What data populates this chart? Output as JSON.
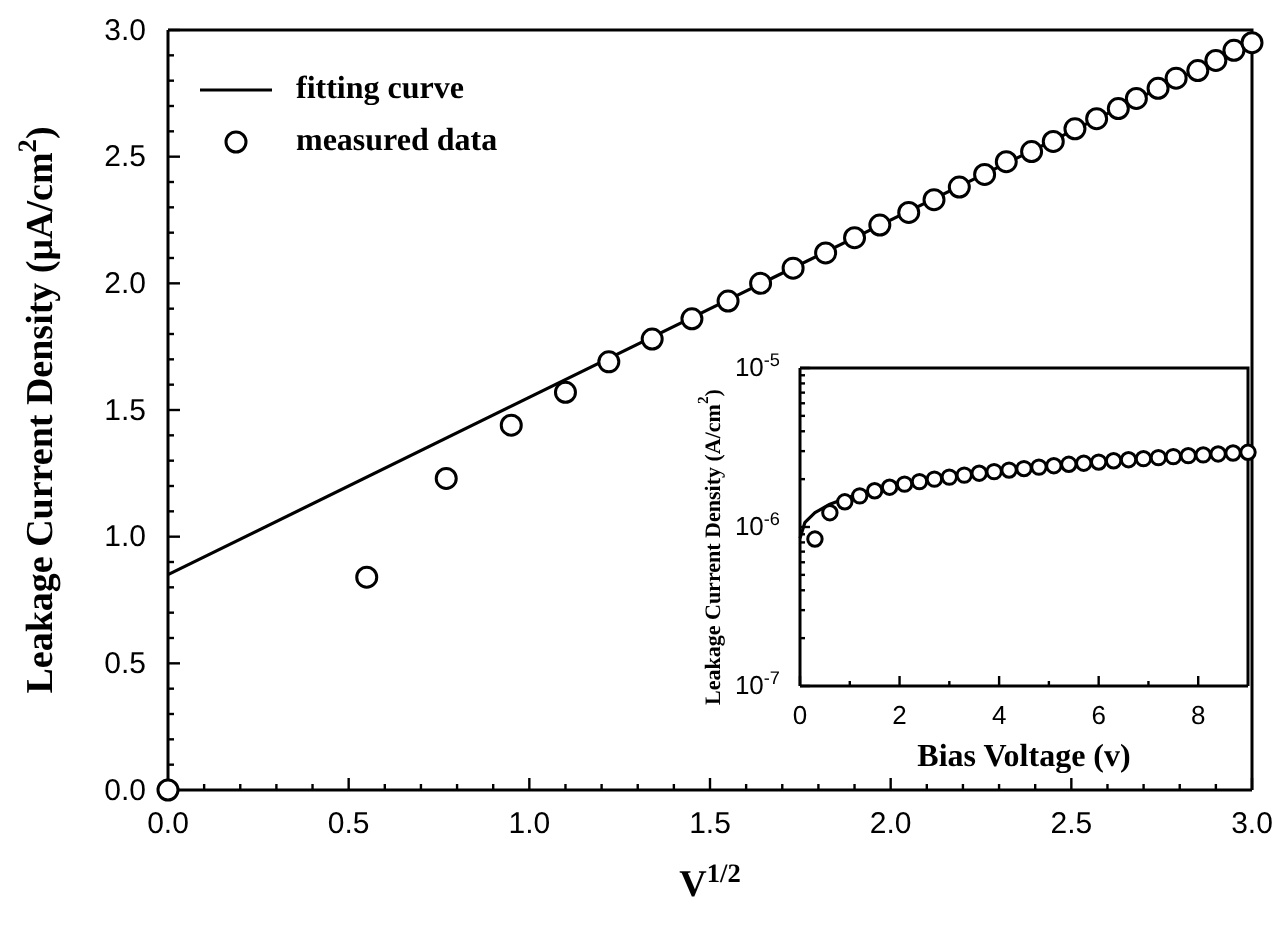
{
  "chart_data": [
    {
      "type": "scatter",
      "xlabel": "V$^{1/2}$",
      "ylabel": "Leakage Current Density (μA/cm$^{2}$)",
      "xlim": [
        0,
        3
      ],
      "ylim": [
        0,
        3
      ],
      "xticks": [
        {
          "value": 0,
          "label": "0.0"
        },
        {
          "value": 0.1,
          "label": null
        },
        {
          "value": 0.2,
          "label": null
        },
        {
          "value": 0.3,
          "label": null
        },
        {
          "value": 0.4,
          "label": null
        },
        {
          "value": 0.5,
          "label": "0.5"
        },
        {
          "value": 0.6,
          "label": null
        },
        {
          "value": 0.7,
          "label": null
        },
        {
          "value": 0.8,
          "label": null
        },
        {
          "value": 0.9,
          "label": null
        },
        {
          "value": 1,
          "label": "1.0"
        },
        {
          "value": 1.1,
          "label": null
        },
        {
          "value": 1.2,
          "label": null
        },
        {
          "value": 1.3,
          "label": null
        },
        {
          "value": 1.4,
          "label": null
        },
        {
          "value": 1.5,
          "label": "1.5"
        },
        {
          "value": 1.6,
          "label": null
        },
        {
          "value": 1.7,
          "label": null
        },
        {
          "value": 1.8,
          "label": null
        },
        {
          "value": 1.9,
          "label": null
        },
        {
          "value": 2,
          "label": "2.0"
        },
        {
          "value": 2.1,
          "label": null
        },
        {
          "value": 2.2,
          "label": null
        },
        {
          "value": 2.3,
          "label": null
        },
        {
          "value": 2.4,
          "label": null
        },
        {
          "value": 2.5,
          "label": "2.5"
        },
        {
          "value": 2.6,
          "label": null
        },
        {
          "value": 2.7,
          "label": null
        },
        {
          "value": 2.8,
          "label": null
        },
        {
          "value": 2.9,
          "label": null
        },
        {
          "value": 3,
          "label": "3.0"
        }
      ],
      "yticks": [
        {
          "value": 0,
          "label": "0.0"
        },
        {
          "value": 0.1,
          "label": null
        },
        {
          "value": 0.2,
          "label": null
        },
        {
          "value": 0.3,
          "label": null
        },
        {
          "value": 0.4,
          "label": null
        },
        {
          "value": 0.5,
          "label": "0.5"
        },
        {
          "value": 0.6,
          "label": null
        },
        {
          "value": 0.7,
          "label": null
        },
        {
          "value": 0.8,
          "label": null
        },
        {
          "value": 0.9,
          "label": null
        },
        {
          "value": 1,
          "label": "1.0"
        },
        {
          "value": 1.1,
          "label": null
        },
        {
          "value": 1.2,
          "label": null
        },
        {
          "value": 1.3,
          "label": null
        },
        {
          "value": 1.4,
          "label": null
        },
        {
          "value": 1.5,
          "label": "1.5"
        },
        {
          "value": 1.6,
          "label": null
        },
        {
          "value": 1.7,
          "label": null
        },
        {
          "value": 1.8,
          "label": null
        },
        {
          "value": 1.9,
          "label": null
        },
        {
          "value": 2,
          "label": "2.0"
        },
        {
          "value": 2.1,
          "label": null
        },
        {
          "value": 2.2,
          "label": null
        },
        {
          "value": 2.3,
          "label": null
        },
        {
          "value": 2.4,
          "label": null
        },
        {
          "value": 2.5,
          "label": "2.5"
        },
        {
          "value": 2.6,
          "label": null
        },
        {
          "value": 2.7,
          "label": null
        },
        {
          "value": 2.8,
          "label": null
        },
        {
          "value": 2.9,
          "label": null
        },
        {
          "value": 3,
          "label": "3.0"
        }
      ],
      "legend": "top left",
      "series": [
        {
          "name": "fitting curve",
          "type": "line",
          "color": "#000000",
          "x": [
            0,
            3
          ],
          "values": [
            0.85,
            2.95
          ]
        },
        {
          "name": "measured data",
          "marker": "circle",
          "color": "#000000",
          "x": [
            0,
            0.55,
            0.77,
            0.95,
            1.1,
            1.22,
            1.34,
            1.45,
            1.55,
            1.64,
            1.73,
            1.82,
            1.9,
            1.97,
            2.05,
            2.12,
            2.19,
            2.26,
            2.32,
            2.39,
            2.45,
            2.51,
            2.57,
            2.63,
            2.68,
            2.74,
            2.79,
            2.85,
            2.9,
            2.95,
            3
          ],
          "values": [
            0,
            0.84,
            1.23,
            1.44,
            1.57,
            1.69,
            1.78,
            1.86,
            1.93,
            2,
            2.06,
            2.12,
            2.18,
            2.23,
            2.28,
            2.33,
            2.38,
            2.43,
            2.48,
            2.52,
            2.56,
            2.61,
            2.65,
            2.69,
            2.73,
            2.77,
            2.81,
            2.84,
            2.88,
            2.92,
            2.95
          ]
        }
      ]
    },
    {
      "type": "scatter",
      "xlabel": "Bias Voltage (v)",
      "ylabel": "Leakage Current Density (A/cm$^{2}$)",
      "log": "y",
      "xlim": [
        0,
        9
      ],
      "ylim": [
        1e-07,
        1e-05
      ],
      "xticks": [
        0,
        {
          "value": 1,
          "label": null
        },
        2,
        {
          "value": 3,
          "label": null
        },
        4,
        {
          "value": 5,
          "label": null
        },
        6,
        {
          "value": 7,
          "label": null
        },
        8
      ],
      "yticks": [
        {
          "value": 1e-07,
          "label": "10$^{-7}$"
        },
        {
          "value": 2e-07,
          "label": null
        },
        {
          "value": 3e-07,
          "label": null
        },
        {
          "value": 4e-07,
          "label": null
        },
        {
          "value": 5e-07,
          "label": null
        },
        {
          "value": 6e-07,
          "label": null
        },
        {
          "value": 7e-07,
          "label": null
        },
        {
          "value": 8e-07,
          "label": null
        },
        {
          "value": 9e-07,
          "label": null
        },
        {
          "value": 1e-06,
          "label": "10$^{-6}$"
        },
        {
          "value": 2e-06,
          "label": null
        },
        {
          "value": 3e-06,
          "label": null
        },
        {
          "value": 4e-06,
          "label": null
        },
        {
          "value": 5e-06,
          "label": null
        },
        {
          "value": 6e-06,
          "label": null
        },
        {
          "value": 7e-06,
          "label": null
        },
        {
          "value": 8e-06,
          "label": null
        },
        {
          "value": 9e-06,
          "label": null
        },
        {
          "value": 1e-05,
          "label": "10$^{-5}$"
        }
      ],
      "series": [
        {
          "type": "line",
          "color": "#000000",
          "x": [
            0,
            0.1,
            0.3,
            0.6,
            1,
            1.5,
            2,
            3,
            4,
            5,
            6,
            7,
            8,
            9
          ],
          "values": [
            8.5e-07,
            1.07e-06,
            1.23e-06,
            1.39e-06,
            1.55e-06,
            1.71e-06,
            1.84e-06,
            2.06e-06,
            2.25e-06,
            2.42e-06,
            2.56e-06,
            2.7e-06,
            2.83e-06,
            2.95e-06
          ]
        },
        {
          "marker": "circle",
          "color": "#000000",
          "x": [
            0.3,
            0.6,
            0.9,
            1.2,
            1.5,
            1.8,
            2.1,
            2.4,
            2.7,
            3,
            3.3,
            3.6,
            3.9,
            4.2,
            4.5,
            4.8,
            5.1,
            5.4,
            5.7,
            6,
            6.3,
            6.6,
            6.9,
            7.2,
            7.5,
            7.8,
            8.1,
            8.4,
            8.7,
            9
          ],
          "values": [
            8.4e-07,
            1.23e-06,
            1.44e-06,
            1.57e-06,
            1.69e-06,
            1.78e-06,
            1.86e-06,
            1.93e-06,
            2e-06,
            2.06e-06,
            2.12e-06,
            2.18e-06,
            2.23e-06,
            2.28e-06,
            2.33e-06,
            2.38e-06,
            2.43e-06,
            2.48e-06,
            2.52e-06,
            2.56e-06,
            2.61e-06,
            2.65e-06,
            2.69e-06,
            2.73e-06,
            2.77e-06,
            2.81e-06,
            2.84e-06,
            2.88e-06,
            2.92e-06,
            2.95e-06
          ]
        }
      ]
    }
  ]
}
